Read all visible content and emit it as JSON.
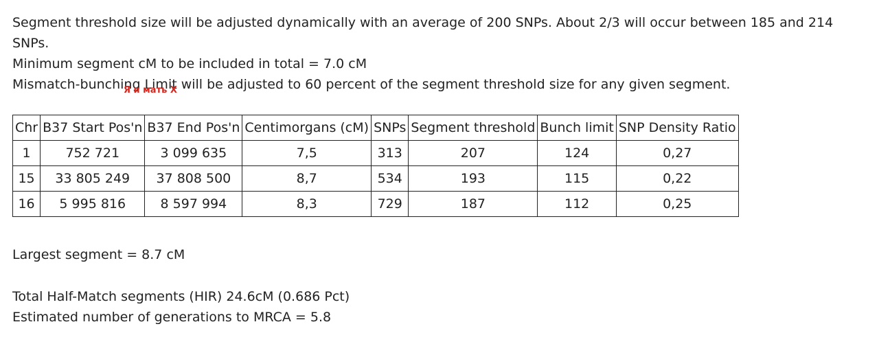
{
  "intro": [
    "Segment threshold size will be adjusted dynamically with an average of 200 SNPs. About 2/3 will occur between 185 and 214 SNPs.",
    "Minimum segment cM to be included in total = 7.0 cM",
    "Mismatch-bunching Limit will be adjusted to 60 percent of the segment threshold size for any given segment."
  ],
  "subtitle": "Я и мать X",
  "table": {
    "header": [
      "Chr",
      "B37 Start Pos'n",
      "B37 End Pos'n",
      "Centimorgans (cM)",
      "SNPs",
      "Segment threshold",
      "Bunch limit",
      "SNP Density Ratio"
    ],
    "rows": [
      [
        "1",
        "752 721",
        "3 099 635",
        "7,5",
        "313",
        "207",
        "124",
        "0,27"
      ],
      [
        "15",
        "33 805 249",
        "37 808 500",
        "8,7",
        "534",
        "193",
        "115",
        "0,22"
      ],
      [
        "16",
        "5 995 816",
        "8 597 994",
        "8,3",
        "729",
        "187",
        "112",
        "0,25"
      ]
    ]
  },
  "largest": "Largest segment = 8.7 cM",
  "summary": [
    "Total Half-Match segments (HIR) 24.6cM (0.686 Pct)",
    "Estimated number of generations to MRCA = 5.8"
  ]
}
